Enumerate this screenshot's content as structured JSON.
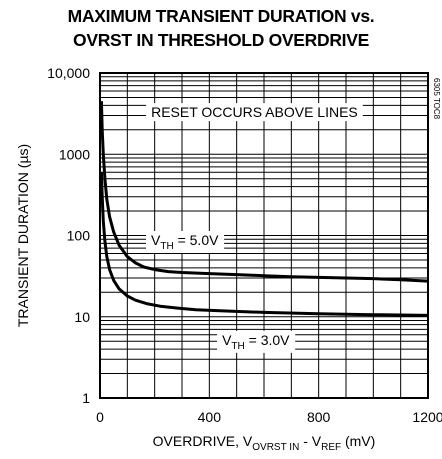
{
  "chart_data": {
    "type": "line",
    "title_line1": "MAXIMUM TRANSIENT DURATION vs.",
    "title_line2": "OVRST IN THRESHOLD OVERDRIVE",
    "xlabel_main": "OVERDRIVE, V",
    "xlabel_sub1": "OVRST IN",
    "xlabel_mid": " - V",
    "xlabel_sub2": "REF",
    "xlabel_unit": " (mV)",
    "ylabel": "TRANSIENT DURATION (µs)",
    "figure_code": "6305 TOC8",
    "xlim": [
      0,
      1200
    ],
    "ylim": [
      1,
      10000
    ],
    "yscale": "log",
    "grid": true,
    "x_ticks": [
      {
        "value": 0,
        "label": "0"
      },
      {
        "value": 400,
        "label": "400"
      },
      {
        "value": 800,
        "label": "800"
      },
      {
        "value": 1200,
        "label": "1200"
      }
    ],
    "y_ticks": [
      {
        "value": 1,
        "label": "1"
      },
      {
        "value": 10,
        "label": "10"
      },
      {
        "value": 100,
        "label": "100"
      },
      {
        "value": 1000,
        "label": "1000"
      },
      {
        "value": 10000,
        "label": "10,000"
      }
    ],
    "annotations": [
      {
        "text": "RESET OCCURS ABOVE LINES",
        "x": 565,
        "y": 3300
      }
    ],
    "series": [
      {
        "label_main": "V",
        "label_sub": "TH",
        "label_rest": " = 5.0V",
        "label_at": {
          "x": 310,
          "y": 88
        },
        "x": [
          5,
          8,
          12,
          18,
          25,
          35,
          50,
          70,
          100,
          130,
          160,
          200,
          250,
          300,
          400,
          500,
          600,
          700,
          800,
          900,
          1000,
          1100,
          1200
        ],
        "y": [
          4500,
          2000,
          1000,
          500,
          280,
          170,
          110,
          76,
          55,
          46,
          41,
          38,
          36,
          35,
          34,
          33,
          32,
          31,
          30.5,
          30,
          29.5,
          28.5,
          27.5
        ]
      },
      {
        "label_main": "V",
        "label_sub": "TH",
        "label_rest": " = 3.0V",
        "label_at": {
          "x": 570,
          "y": 5.2
        },
        "x": [
          5,
          8,
          12,
          18,
          25,
          35,
          50,
          70,
          100,
          130,
          170,
          220,
          280,
          350,
          450,
          600,
          800,
          1000,
          1200
        ],
        "y": [
          600,
          300,
          150,
          85,
          55,
          38,
          28,
          22,
          18,
          16,
          14.5,
          13.5,
          12.8,
          12.2,
          11.8,
          11.3,
          10.9,
          10.6,
          10.4
        ]
      }
    ]
  }
}
